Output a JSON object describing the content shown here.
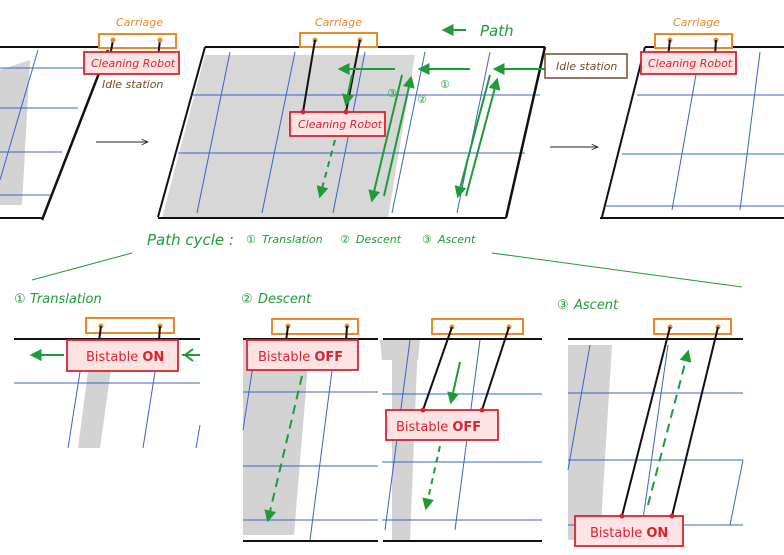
{
  "labels": {
    "carriage": "Carriage",
    "cleaning_robot": "Cleaning Robot",
    "idle_station": "Idle station",
    "path": "Path",
    "path_cycle": "Path cycle :",
    "step_translation_num": "①",
    "step_descent_num": "②",
    "step_ascent_num": "③",
    "translation": "Translation",
    "descent": "Descent",
    "ascent": "Ascent",
    "bistable": "Bistable",
    "on": "ON",
    "off": "OFF"
  },
  "colors": {
    "green": "#1f9a3a",
    "orange": "#e8892a",
    "red": "#d8242e",
    "robot_fill": "#fde3e3",
    "panel_line": "#3a64c8",
    "shade": "#d3d3d3",
    "brown": "#7a4a2a"
  },
  "icons": [
    "right-arrow-icon",
    "left-arrow-icon",
    "dashed-down-arrow-icon",
    "dashed-up-arrow-icon"
  ]
}
